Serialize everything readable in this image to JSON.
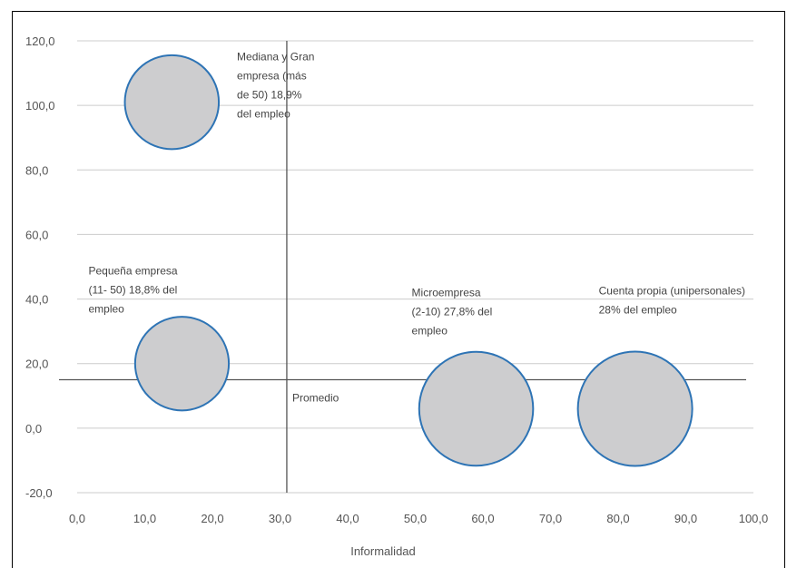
{
  "chart_data": {
    "type": "scatter",
    "variant": "bubble",
    "xlabel": "Informalidad",
    "ylabel": "",
    "xlim": [
      0,
      100
    ],
    "ylim": [
      -20,
      120
    ],
    "x_ticks": [
      "0,0",
      "10,0",
      "20,0",
      "30,0",
      "40,0",
      "50,0",
      "60,0",
      "70,0",
      "80,0",
      "90,0",
      "100,0"
    ],
    "y_ticks": [
      "120,0",
      "100,0",
      "80,0",
      "60,0",
      "40,0",
      "20,0",
      "0,0",
      "-20,0"
    ],
    "grid": "horizontal",
    "reference_lines": [
      {
        "orientation": "vertical",
        "value": 31,
        "label": ""
      },
      {
        "orientation": "horizontal",
        "value": 15,
        "label": "Promedio"
      }
    ],
    "points": [
      {
        "x": 14,
        "y": 101,
        "size": 18.9,
        "label": [
          "Mediana y Gran",
          "empresa (más",
          "de 50) 18,9%",
          "del empleo"
        ]
      },
      {
        "x": 15.5,
        "y": 20,
        "size": 18.8,
        "label": [
          "Pequeña empresa",
          "(11- 50) 18,8% del",
          "empleo"
        ]
      },
      {
        "x": 59,
        "y": 6,
        "size": 27.8,
        "label": [
          "Microempresa",
          "(2-10) 27,8% del",
          "empleo"
        ]
      },
      {
        "x": 82.5,
        "y": 6,
        "size": 28,
        "label": [
          "Cuenta propia (unipersonales)",
          "28% del empleo"
        ]
      }
    ],
    "colors": {
      "bubble_fill": "#cdcdcf",
      "bubble_stroke": "#2e74b5",
      "grid": "#cccccc",
      "ref_line": "#555555"
    }
  }
}
